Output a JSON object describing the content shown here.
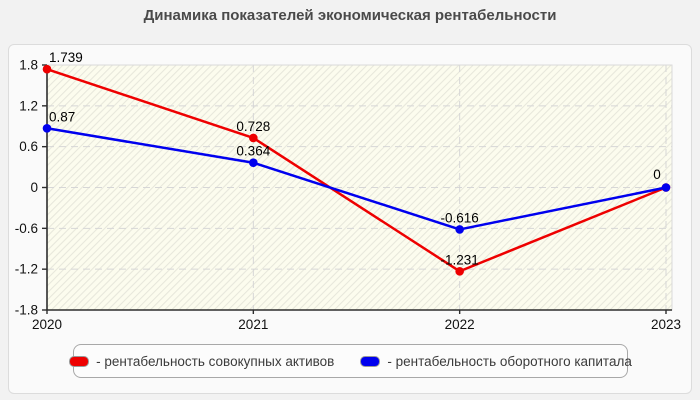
{
  "chart_data": {
    "type": "line",
    "title": "Динамика показателей экономическая рентабельности",
    "categories": [
      "2020",
      "2021",
      "2022",
      "2023"
    ],
    "series": [
      {
        "name": "рентабельность совокупных активов",
        "color": "#ee0000",
        "values": [
          1.739,
          0.728,
          -1.231,
          0
        ],
        "point_labels": [
          "1.739",
          "0.728",
          "-1.231",
          ""
        ]
      },
      {
        "name": "рентабельность оборотного капитала",
        "color": "#0000ee",
        "values": [
          0.87,
          0.364,
          -0.616,
          0
        ],
        "point_labels": [
          "0.87",
          "0.364",
          "-0.616",
          "0"
        ]
      }
    ],
    "ylim": [
      -1.8,
      1.8
    ],
    "ytick_step": 0.6,
    "yticks": [
      "1.8",
      "1.2",
      "0.6",
      "0",
      "-0.6",
      "-1.2",
      "-1.8"
    ],
    "grid": "dashed",
    "plot_background": "#fcfcee",
    "legend_position": "bottom"
  },
  "legend": {
    "items": [
      {
        "label": "- рентабельность совокупных активов"
      },
      {
        "label": "- рентабельность оборотного капитала"
      }
    ]
  }
}
